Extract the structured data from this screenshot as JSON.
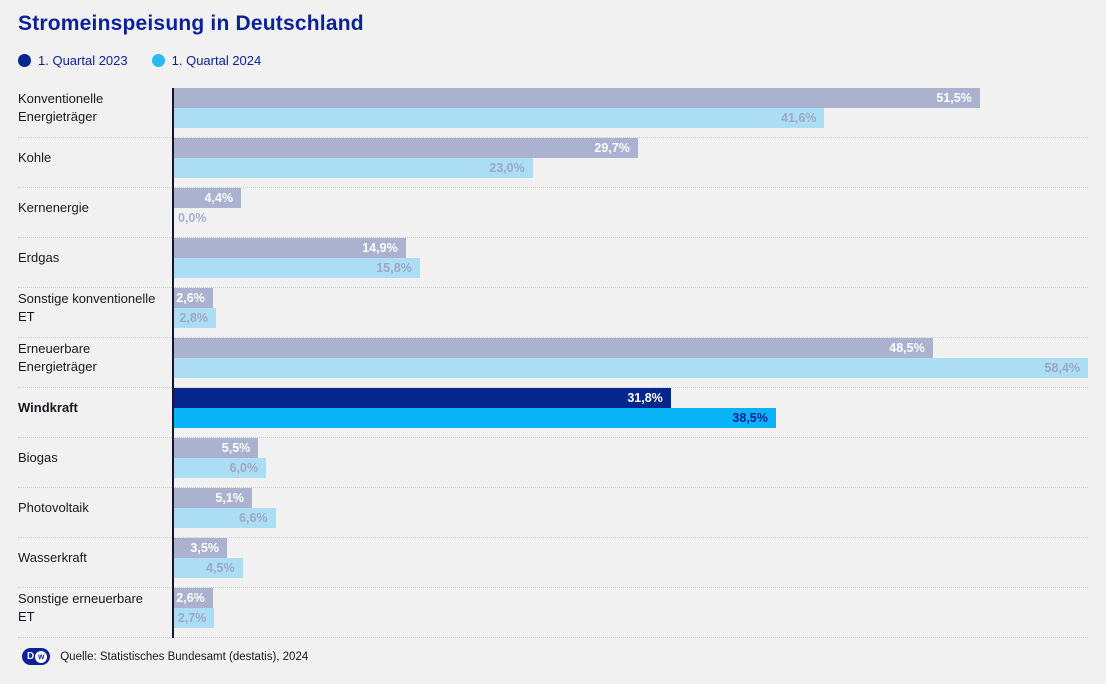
{
  "title": "Stromeinspeisung in Deutschland",
  "legend": [
    {
      "label": "1. Quartal 2023",
      "color": "#05268c"
    },
    {
      "label": "1. Quartal 2024",
      "color": "#2cb9f3"
    }
  ],
  "chart_data": {
    "type": "bar",
    "orientation": "horizontal",
    "unit": "%",
    "title": "Stromeinspeisung in Deutschland",
    "grid": false,
    "legend_position": "top",
    "xlim": [
      0,
      58.4
    ],
    "categories": [
      "Konventionelle Energieträger",
      "Kohle",
      "Kernenergie",
      "Erdgas",
      "Sonstige konventionelle ET",
      "Erneuerbare Energieträger",
      "Windkraft",
      "Biogas",
      "Photovoltaik",
      "Wasserkraft",
      "Sonstige erneuerbare ET"
    ],
    "highlighted_category": "Windkraft",
    "series": [
      {
        "name": "1. Quartal 2023",
        "values": [
          51.5,
          29.7,
          4.4,
          14.9,
          2.6,
          48.5,
          31.8,
          5.5,
          5.1,
          3.5,
          2.6
        ],
        "labels": [
          "51,5%",
          "29,7%",
          "4,4%",
          "14,9%",
          "2,6%",
          "48,5%",
          "31,8%",
          "5,5%",
          "5,1%",
          "3,5%",
          "2,6%"
        ],
        "bar_color": "#aab2d0",
        "highlight_bar_color": "#05268c",
        "value_text_color": "#ffffff",
        "highlight_value_text_color": "#ffffff"
      },
      {
        "name": "1. Quartal 2024",
        "values": [
          41.6,
          23.0,
          0.0,
          15.8,
          2.8,
          58.4,
          38.5,
          6.0,
          6.6,
          4.5,
          2.7
        ],
        "labels": [
          "41,6%",
          "23,0%",
          "0,0%",
          "15,8%",
          "2,8%",
          "58,4%",
          "38,5%",
          "6,0%",
          "6,6%",
          "4,5%",
          "2,7%"
        ],
        "bar_color": "#abddf5",
        "highlight_bar_color": "#0ab2f8",
        "value_text_color": "#9fa8c4",
        "highlight_value_text_color": "#05268c",
        "outside_value_text_color": "#a5aecd"
      }
    ]
  },
  "footer": {
    "logo_d": "D",
    "logo_w": "w",
    "source": "Quelle: Statistisches Bundesamt (destatis), 2024"
  },
  "colors": {
    "background": "#f2f1f2",
    "title_text": "#0b219c",
    "label_text": "#17171f",
    "axis_line": "#17172e",
    "separator": "#cfced3"
  }
}
